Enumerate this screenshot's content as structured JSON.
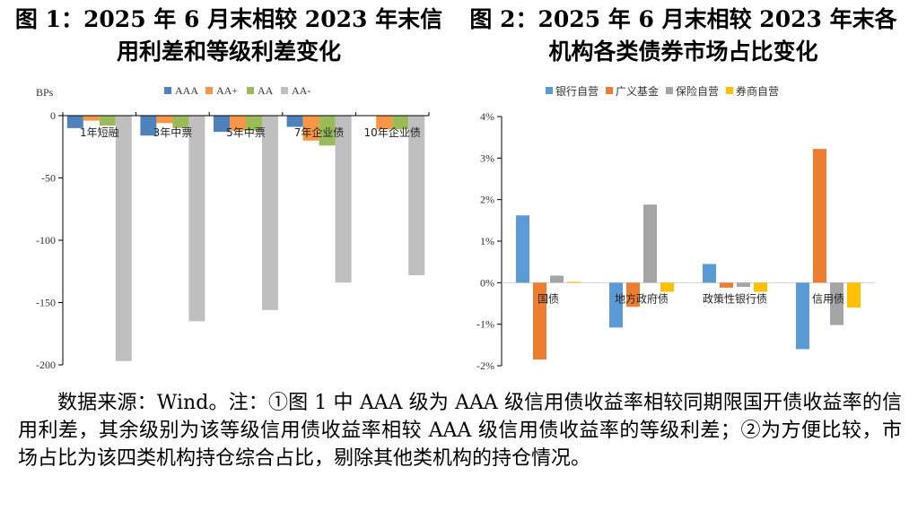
{
  "chart_data": [
    {
      "type": "bar",
      "title": "图 1：2025 年 6 月末相较 2023 年末信用利差和等级利差变化",
      "title_lines": [
        "图 1：2025 年 6 月末相较 2023 年末信",
        "用利差和等级利差变化"
      ],
      "xlabel": "",
      "ylabel": "BPs",
      "ylim": [
        -200,
        0
      ],
      "yticks": [
        0,
        -50,
        -100,
        -150,
        -200
      ],
      "ytick_labels": [
        "0",
        "-50",
        "-100",
        "-150",
        "-200"
      ],
      "grid": false,
      "legend_position": "top",
      "categories": [
        "1年短融",
        "3年中票",
        "5年中票",
        "7年企业债",
        "10年企业债"
      ],
      "series": [
        {
          "name": "AAA",
          "color": "#4F81BD",
          "values": [
            -10,
            -16,
            -13,
            -9,
            0
          ]
        },
        {
          "name": "AA+",
          "color": "#F79646",
          "values": [
            -4,
            -6,
            -12,
            -20,
            -11
          ]
        },
        {
          "name": "AA",
          "color": "#9BBB59",
          "values": [
            -8,
            -10,
            -12,
            -24,
            -11
          ]
        },
        {
          "name": "AA-",
          "color": "#BFBFBF",
          "values": [
            -197,
            -165,
            -156,
            -134,
            -128
          ]
        }
      ]
    },
    {
      "type": "bar",
      "title": "图 2：2025 年 6 月末相较 2023 年末各机构各类债券市场占比变化",
      "title_lines": [
        "图 2：2025 年 6 月末相较 2023 年末各",
        "机构各类债券市场占比变化"
      ],
      "xlabel": "",
      "ylabel": "",
      "ylim": [
        -2,
        4
      ],
      "yticks": [
        4,
        3,
        2,
        1,
        0,
        -1,
        -2
      ],
      "ytick_labels": [
        "4%",
        "3%",
        "2%",
        "1%",
        "0%",
        "-1%",
        "-2%"
      ],
      "grid": false,
      "legend_position": "top",
      "categories": [
        "国债",
        "地方政府债",
        "政策性银行债",
        "信用债"
      ],
      "series": [
        {
          "name": "银行自营",
          "color": "#5B9BD5",
          "values": [
            1.62,
            -1.08,
            0.45,
            -1.6
          ]
        },
        {
          "name": "广义基金",
          "color": "#ED7D31",
          "values": [
            -1.85,
            -0.58,
            -0.12,
            3.22
          ]
        },
        {
          "name": "保险自营",
          "color": "#A5A5A5",
          "values": [
            0.17,
            1.88,
            -0.1,
            -1.02
          ]
        },
        {
          "name": "券商自营",
          "color": "#FFC000",
          "values": [
            0.02,
            -0.22,
            -0.22,
            -0.6
          ]
        }
      ]
    }
  ],
  "note": "数据来源：Wind。注：①图 1 中 AAA 级为 AAA 级信用债收益率相较同期限国开债收益率的信用利差，其余级别为该等级信用债收益率相较 AAA 级信用债收益率的等级利差；②为方便比较，市场占比为该四类机构持仓综合占比，剔除其他类机构的持仓情况。"
}
